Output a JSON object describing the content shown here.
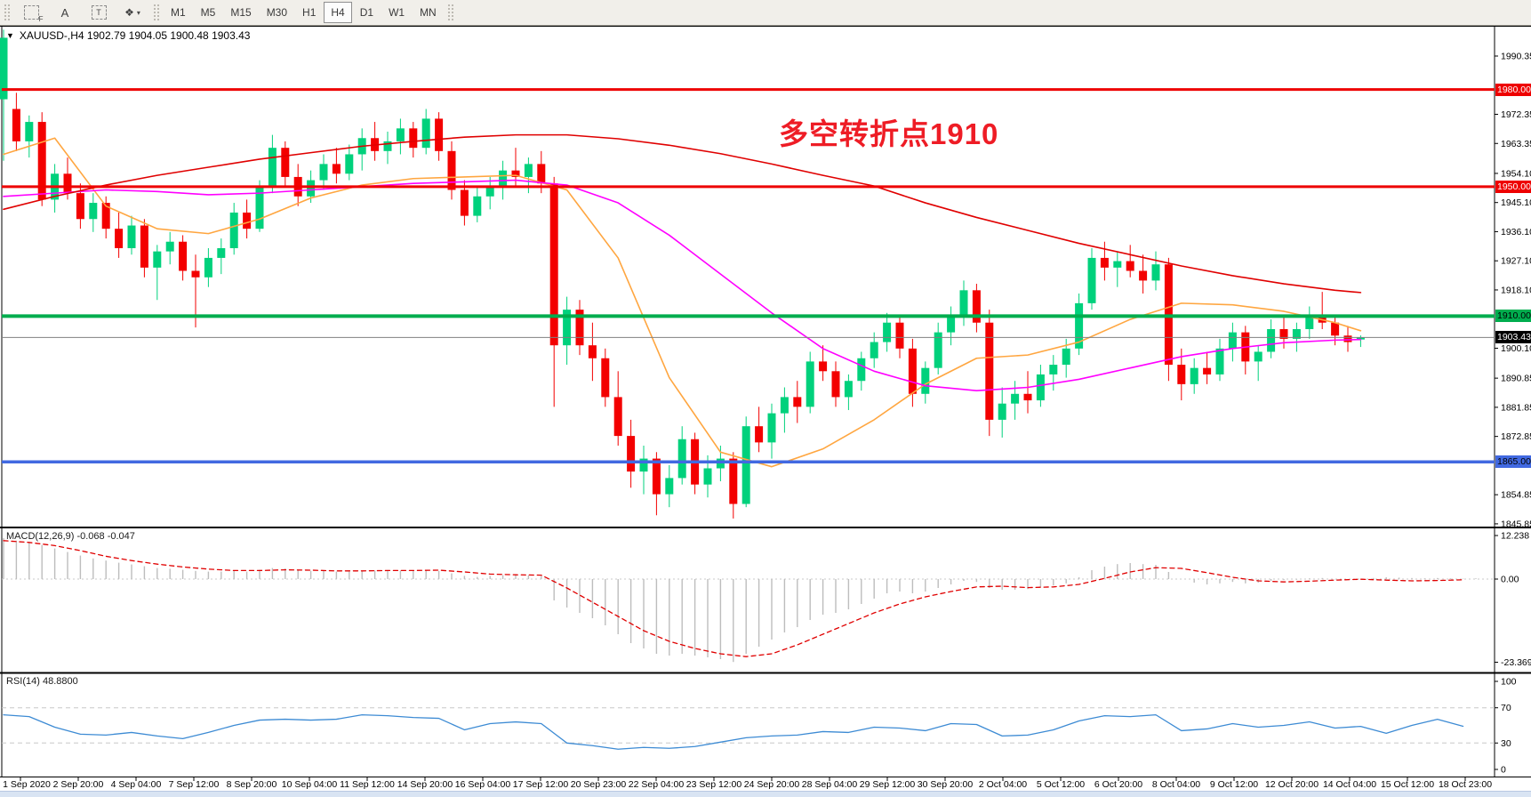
{
  "toolbar": {
    "tools": [
      {
        "id": "fibonacci-tool",
        "label": "F"
      },
      {
        "id": "text-label-tool",
        "label": "A"
      },
      {
        "id": "textbox-tool",
        "label": "T"
      },
      {
        "id": "arrows-tool",
        "label": "❖",
        "caret": "▾"
      }
    ],
    "timeframes": [
      "M1",
      "M5",
      "M15",
      "M30",
      "H1",
      "H4",
      "D1",
      "W1",
      "MN"
    ],
    "active_timeframe": "H4"
  },
  "chart": {
    "title": "XAUUSD-,H4  1902.79 1904.05 1900.48 1903.43",
    "menu_arrow": "▼"
  },
  "indicators": {
    "macd_label": "MACD(12,26,9) -0.068 -0.047",
    "rsi_label": "RSI(14) 48.8800"
  },
  "annotation": {
    "text": "多空转折点1910",
    "color": "#ee1c25"
  },
  "axis": {
    "price_ticks": [
      "1990.35",
      "1972.35",
      "1963.35",
      "1954.10",
      "1945.10",
      "1936.10",
      "1927.10",
      "1918.10",
      "1900.10",
      "1890.85",
      "1881.85",
      "1872.85",
      "1854.85",
      "1845.85"
    ],
    "macd_ticks": [
      {
        "v": 12.238,
        "label": "12.238"
      },
      {
        "v": 0,
        "label": "0.00"
      },
      {
        "v": -23.369,
        "label": "-23.369"
      }
    ],
    "rsi_ticks": [
      {
        "v": 100,
        "label": "100"
      },
      {
        "v": 70,
        "label": "70"
      },
      {
        "v": 30,
        "label": "30"
      },
      {
        "v": 0,
        "label": "0"
      }
    ],
    "time_labels": [
      "1 Sep 2020",
      "2 Sep 20:00",
      "4 Sep 04:00",
      "7 Sep 12:00",
      "8 Sep 20:00",
      "10 Sep 04:00",
      "11 Sep 12:00",
      "14 Sep 20:00",
      "16 Sep 04:00",
      "17 Sep 12:00",
      "20 Sep 23:00",
      "22 Sep 04:00",
      "23 Sep 12:00",
      "24 Sep 20:00",
      "28 Sep 04:00",
      "29 Sep 12:00",
      "30 Sep 20:00",
      "2 Oct 04:00",
      "5 Oct 12:00",
      "6 Oct 20:00",
      "8 Oct 04:00",
      "9 Oct 12:00",
      "12 Oct 20:00",
      "14 Oct 04:00",
      "15 Oct 12:00",
      "18 Oct 23:00"
    ]
  },
  "levels": [
    {
      "price": 1980.0,
      "label": "1980.00",
      "color": "#ee0000",
      "text_color": "#ffffff",
      "width": 3
    },
    {
      "price": 1950.0,
      "label": "1950.00",
      "color": "#ee0000",
      "text_color": "#ffffff",
      "width": 3
    },
    {
      "price": 1910.0,
      "label": "1910.00",
      "color": "#00ad4e",
      "text_color": "#000000",
      "width": 4
    },
    {
      "price": 1865.0,
      "label": "1865.00",
      "color": "#4169e1",
      "text_color": "#000000",
      "width": 3.5
    }
  ],
  "current_price": {
    "value": 1903.43,
    "label": "1903.43",
    "line_color": "#808080",
    "label_bg": "#000000",
    "label_fg": "#ffffff"
  },
  "chart_data": {
    "type": "candlestick",
    "symbol": "XAUUSD-",
    "period": "H4",
    "current_bar": {
      "open": 1902.79,
      "high": 1904.05,
      "low": 1900.48,
      "close": 1903.43
    },
    "colors": {
      "up": "#00d17c",
      "down": "#f30000"
    },
    "candles": [
      [
        1977,
        1998.5,
        1958,
        1996
      ],
      [
        1974,
        1979,
        1961,
        1964
      ],
      [
        1964,
        1972,
        1959,
        1970
      ],
      [
        1970,
        1973,
        1944,
        1946
      ],
      [
        1946,
        1957,
        1942,
        1954
      ],
      [
        1954,
        1959,
        1946,
        1948
      ],
      [
        1948,
        1951,
        1937,
        1940
      ],
      [
        1940,
        1948,
        1936,
        1945
      ],
      [
        1945,
        1947,
        1934,
        1937
      ],
      [
        1937,
        1942,
        1928,
        1931
      ],
      [
        1931,
        1941,
        1929,
        1938
      ],
      [
        1938,
        1940,
        1922,
        1925
      ],
      [
        1925,
        1932,
        1915,
        1930
      ],
      [
        1930,
        1936,
        1926,
        1933
      ],
      [
        1933,
        1935,
        1921,
        1924
      ],
      [
        1924,
        1929,
        1906.5,
        1922
      ],
      [
        1922,
        1931,
        1919,
        1928
      ],
      [
        1928,
        1934,
        1923,
        1931
      ],
      [
        1931,
        1945,
        1929,
        1942
      ],
      [
        1942,
        1946,
        1934,
        1937
      ],
      [
        1937,
        1952,
        1936,
        1950
      ],
      [
        1950,
        1966,
        1948,
        1962
      ],
      [
        1962,
        1964,
        1950,
        1953
      ],
      [
        1953,
        1957,
        1944,
        1947
      ],
      [
        1947,
        1955,
        1945,
        1952
      ],
      [
        1952,
        1960,
        1949,
        1957
      ],
      [
        1957,
        1962,
        1951,
        1954
      ],
      [
        1954,
        1963,
        1952,
        1960
      ],
      [
        1960,
        1968,
        1955,
        1965
      ],
      [
        1965,
        1970,
        1958,
        1961
      ],
      [
        1961,
        1967,
        1957,
        1964
      ],
      [
        1964,
        1971,
        1960,
        1968
      ],
      [
        1968,
        1970,
        1959,
        1962
      ],
      [
        1962,
        1974,
        1960,
        1971
      ],
      [
        1971,
        1973,
        1958,
        1961
      ],
      [
        1961,
        1964,
        1946,
        1949
      ],
      [
        1949,
        1952,
        1938,
        1941
      ],
      [
        1941,
        1950,
        1939,
        1947
      ],
      [
        1947,
        1953,
        1943,
        1950
      ],
      [
        1950,
        1958,
        1946,
        1955
      ],
      [
        1955,
        1962,
        1950,
        1953
      ],
      [
        1953,
        1959,
        1948,
        1957
      ],
      [
        1957,
        1961,
        1948,
        1951
      ],
      [
        1951,
        1953,
        1882,
        1901
      ],
      [
        1901,
        1916,
        1895,
        1912
      ],
      [
        1912,
        1915,
        1898,
        1901
      ],
      [
        1901,
        1908,
        1890,
        1897
      ],
      [
        1897,
        1900,
        1882,
        1885
      ],
      [
        1885,
        1893,
        1870,
        1873
      ],
      [
        1873,
        1878,
        1857,
        1862
      ],
      [
        1862,
        1870,
        1855,
        1866
      ],
      [
        1866,
        1868,
        1848.5,
        1855
      ],
      [
        1855,
        1864,
        1851,
        1860
      ],
      [
        1860,
        1876,
        1858,
        1872
      ],
      [
        1872,
        1874,
        1855,
        1858
      ],
      [
        1858,
        1867,
        1854,
        1863
      ],
      [
        1863,
        1870,
        1859,
        1866
      ],
      [
        1866,
        1868,
        1847.5,
        1852
      ],
      [
        1852,
        1879,
        1851,
        1876
      ],
      [
        1876,
        1882,
        1868,
        1871
      ],
      [
        1871,
        1883,
        1866,
        1880
      ],
      [
        1880,
        1888,
        1874,
        1885
      ],
      [
        1885,
        1890,
        1877,
        1882
      ],
      [
        1882,
        1899,
        1880,
        1896
      ],
      [
        1896,
        1901,
        1890,
        1893
      ],
      [
        1893,
        1896,
        1882,
        1885
      ],
      [
        1885,
        1892,
        1881,
        1890
      ],
      [
        1890,
        1899,
        1887,
        1897
      ],
      [
        1897,
        1905,
        1894,
        1902
      ],
      [
        1902,
        1911,
        1899,
        1908
      ],
      [
        1908,
        1910,
        1897,
        1900
      ],
      [
        1900,
        1903,
        1882,
        1886
      ],
      [
        1886,
        1896,
        1883,
        1894
      ],
      [
        1894,
        1908,
        1892,
        1905
      ],
      [
        1905,
        1913,
        1901,
        1910
      ],
      [
        1910,
        1921,
        1907,
        1918
      ],
      [
        1918,
        1920,
        1905,
        1908
      ],
      [
        1908,
        1912,
        1873,
        1878
      ],
      [
        1878,
        1888,
        1872.5,
        1883
      ],
      [
        1883,
        1890,
        1878,
        1886
      ],
      [
        1886,
        1893,
        1880,
        1884
      ],
      [
        1884,
        1895,
        1882,
        1892
      ],
      [
        1892,
        1898,
        1887,
        1895
      ],
      [
        1895,
        1903,
        1891,
        1900
      ],
      [
        1900,
        1917,
        1898,
        1914
      ],
      [
        1914,
        1931,
        1912,
        1928
      ],
      [
        1928,
        1933,
        1921,
        1925
      ],
      [
        1925,
        1930,
        1919,
        1927
      ],
      [
        1927,
        1932,
        1922,
        1924
      ],
      [
        1924,
        1929,
        1917,
        1921
      ],
      [
        1921,
        1930,
        1918,
        1926
      ],
      [
        1926,
        1928,
        1890,
        1895
      ],
      [
        1895,
        1900,
        1884,
        1889
      ],
      [
        1889,
        1897,
        1886,
        1894
      ],
      [
        1894,
        1899,
        1889,
        1892
      ],
      [
        1892,
        1903,
        1890,
        1900
      ],
      [
        1900,
        1908,
        1896,
        1905
      ],
      [
        1905,
        1907,
        1892,
        1896
      ],
      [
        1896,
        1901,
        1890,
        1899
      ],
      [
        1899,
        1909,
        1897,
        1906
      ],
      [
        1906,
        1910,
        1900,
        1903
      ],
      [
        1903,
        1908,
        1899,
        1906
      ],
      [
        1906,
        1913,
        1903,
        1910
      ],
      [
        1910,
        1917.5,
        1906,
        1908
      ],
      [
        1908,
        1910,
        1901,
        1904
      ],
      [
        1904,
        1907,
        1899,
        1902
      ],
      [
        1902.79,
        1904.05,
        1900.48,
        1903.43
      ]
    ],
    "moving_averages": [
      {
        "name": "ma-fast",
        "color": "#ffa640",
        "step": 4,
        "values": [
          1960,
          1965,
          1944,
          1937,
          1935.5,
          1940,
          1946.5,
          1950.5,
          1952.5,
          1953,
          1953.5,
          1949,
          1928,
          1891,
          1868,
          1863.5,
          1869,
          1878,
          1889,
          1897,
          1898,
          1902,
          1909,
          1914,
          1913.5,
          1911.5,
          1908,
          1905.5
        ]
      },
      {
        "name": "ma-mid",
        "color": "#ff00ff",
        "step": 4,
        "values": [
          1947,
          1948,
          1949,
          1948.5,
          1947.5,
          1948,
          1949,
          1950,
          1951,
          1951.5,
          1952,
          1950.5,
          1945,
          1935,
          1923,
          1911,
          1900,
          1893,
          1888.5,
          1887,
          1888,
          1890.5,
          1894,
          1897.5,
          1900,
          1901.8,
          1902.6,
          1902.8
        ]
      },
      {
        "name": "ma-slow",
        "color": "#e00000",
        "step": 4,
        "values": [
          1943,
          1947,
          1950.5,
          1953.5,
          1956,
          1958.5,
          1960.5,
          1962.5,
          1964,
          1965.3,
          1966,
          1966,
          1964.8,
          1962.8,
          1960.2,
          1957,
          1953.5,
          1950.2,
          1945,
          1940.5,
          1936.5,
          1932.5,
          1929,
          1925.5,
          1922.5,
          1920,
          1918,
          1917.3
        ]
      }
    ],
    "macd": {
      "hist_color": "#bdbdbd",
      "signal_color": "#e00000",
      "hist": [
        11.5,
        10.8,
        10.2,
        9.6,
        8.6,
        7.6,
        6.6,
        5.8,
        5.2,
        4.6,
        4.1,
        3.6,
        3.1,
        2.9,
        2.6,
        2.3,
        2.1,
        2.1,
        2.3,
        2.1,
        2.6,
        3.1,
        3.0,
        2.6,
        2.3,
        2.3,
        2.1,
        2.1,
        2.3,
        2.4,
        2.3,
        2.4,
        2.3,
        2.6,
        2.3,
        1.6,
        0.9,
        0.6,
        0.9,
        1.1,
        1.1,
        1.0,
        0.8,
        -6,
        -8,
        -9.5,
        -11,
        -13,
        -15.5,
        -18,
        -19.5,
        -21,
        -21.5,
        -21,
        -21.5,
        -22,
        -22.5,
        -23.3,
        -21,
        -19,
        -17,
        -15,
        -13.5,
        -11.5,
        -10,
        -9.5,
        -8.5,
        -7,
        -5.5,
        -4,
        -3.5,
        -4,
        -3.5,
        -2.5,
        -1.5,
        -0.5,
        -0.8,
        -2.5,
        -3,
        -3,
        -2.8,
        -2.2,
        -1.8,
        -1.2,
        0.5,
        2.5,
        3.5,
        4.2,
        4.5,
        4.2,
        4,
        2,
        0,
        -1,
        -1.5,
        -1.2,
        -0.8,
        -1.2,
        -1,
        -0.5,
        -0.3,
        -0.2,
        0.2,
        0.3,
        -0.1,
        -0.2,
        -0.068,
        0.3,
        0.5,
        0.4,
        0.3,
        0.2,
        0.3,
        0.2,
        0.1,
        0.2
      ],
      "signal_step": 2,
      "signal": [
        10.8,
        10.3,
        9.4,
        8.0,
        6.4,
        5.2,
        4.2,
        3.4,
        2.8,
        2.4,
        2.4,
        2.6,
        2.5,
        2.3,
        2.3,
        2.4,
        2.4,
        2.5,
        2.0,
        1.4,
        1.2,
        1.1,
        -2.5,
        -6.5,
        -10.5,
        -14.5,
        -17.5,
        -19.5,
        -21.0,
        -21.8,
        -21.0,
        -18.5,
        -15.5,
        -12.5,
        -9.5,
        -7.0,
        -5.0,
        -3.5,
        -2.2,
        -2.0,
        -2.4,
        -2.2,
        -1.5,
        0.2,
        2.0,
        3.2,
        3.0,
        1.8,
        0.5,
        -0.5,
        -0.8,
        -0.6,
        -0.3,
        -0.047,
        -0.3,
        -0.5,
        -0.4,
        -0.2
      ]
    },
    "rsi": {
      "color": "#3d8bd4",
      "levels": [
        70,
        30
      ],
      "step": 2,
      "values": [
        62,
        60,
        48,
        40,
        39,
        42,
        38,
        35,
        42,
        50,
        56,
        57,
        56,
        57,
        62,
        61,
        59,
        58,
        45,
        52,
        54,
        52,
        30,
        27,
        23,
        25,
        24,
        26,
        31,
        36,
        38,
        39,
        43,
        42,
        48,
        47,
        44,
        52,
        51,
        38,
        39,
        45,
        55,
        61,
        60,
        62,
        44,
        46,
        52,
        48,
        50,
        54,
        47,
        48.88,
        41,
        50,
        57,
        49
      ]
    }
  }
}
